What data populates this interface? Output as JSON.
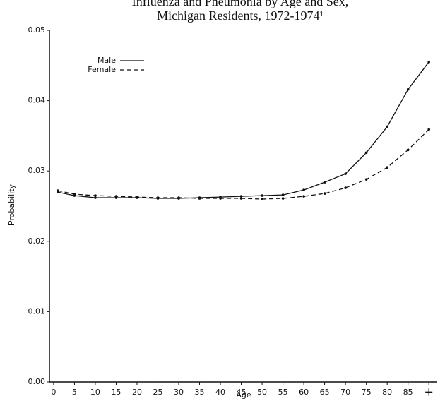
{
  "chart_data": {
    "type": "line",
    "title": [
      "Influenza and Pneumonia by Age and Sex,",
      "Michigan Residents, 1972-1974¹"
    ],
    "xlabel": "Age",
    "ylabel": "Probability",
    "x": [
      1,
      5,
      10,
      15,
      20,
      25,
      30,
      35,
      40,
      45,
      50,
      55,
      60,
      65,
      70,
      75,
      80,
      85,
      90
    ],
    "series": [
      {
        "name": "Male",
        "color": "#111111",
        "dash": "solid",
        "values": [
          0.027,
          0.0265,
          0.0262,
          0.0262,
          0.0262,
          0.0261,
          0.0261,
          0.0262,
          0.0263,
          0.0264,
          0.0265,
          0.0266,
          0.0273,
          0.0284,
          0.0296,
          0.0326,
          0.0363,
          0.0416,
          0.0455
        ]
      },
      {
        "name": "Female",
        "color": "#111111",
        "dash": "dashed",
        "values": [
          0.0272,
          0.0267,
          0.0265,
          0.0264,
          0.0263,
          0.0262,
          0.0262,
          0.0261,
          0.0261,
          0.0261,
          0.026,
          0.0261,
          0.0264,
          0.0268,
          0.0276,
          0.0288,
          0.0305,
          0.033,
          0.0359
        ]
      }
    ],
    "xlim": [
      -1,
      92
    ],
    "ylim": [
      0,
      0.05
    ],
    "xticks": [
      0,
      5,
      10,
      15,
      20,
      25,
      30,
      35,
      40,
      45,
      50,
      55,
      60,
      65,
      70,
      75,
      80,
      85,
      {
        "value": 90,
        "label": "+"
      }
    ],
    "yticks": [
      {
        "value": 0,
        "label": "0.00"
      },
      0.01,
      0.02,
      0.03,
      0.04,
      0.05
    ],
    "legend": "upper left",
    "grid": false
  }
}
